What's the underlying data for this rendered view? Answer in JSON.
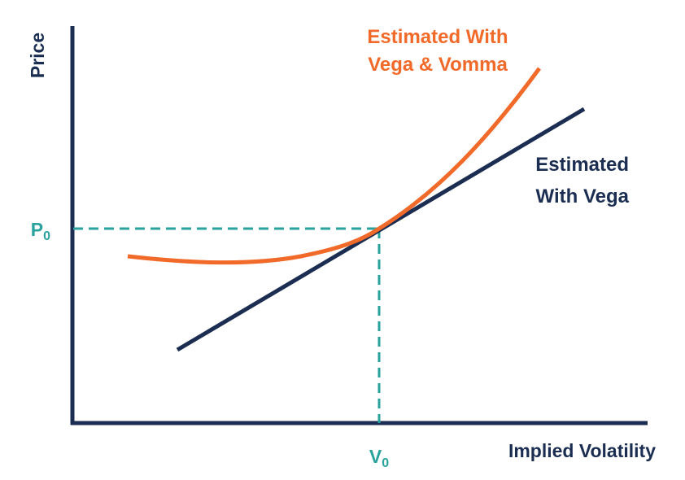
{
  "axes": {
    "y_label": "Price",
    "x_label": "Implied Volatility"
  },
  "reference": {
    "p_symbol": "P",
    "p_subscript": "0",
    "v_symbol": "V",
    "v_subscript": "0"
  },
  "curves": {
    "vega_vomma": {
      "label_line1": "Estimated With",
      "label_line2": "Vega & Vomma"
    },
    "vega": {
      "label_line1": "Estimated",
      "label_line2": "With Vega"
    }
  },
  "colors": {
    "axis": "#1b2e52",
    "vega_line": "#1b2e52",
    "vomma_curve": "#f26a2a",
    "reference_dash": "#2aa39e"
  }
}
